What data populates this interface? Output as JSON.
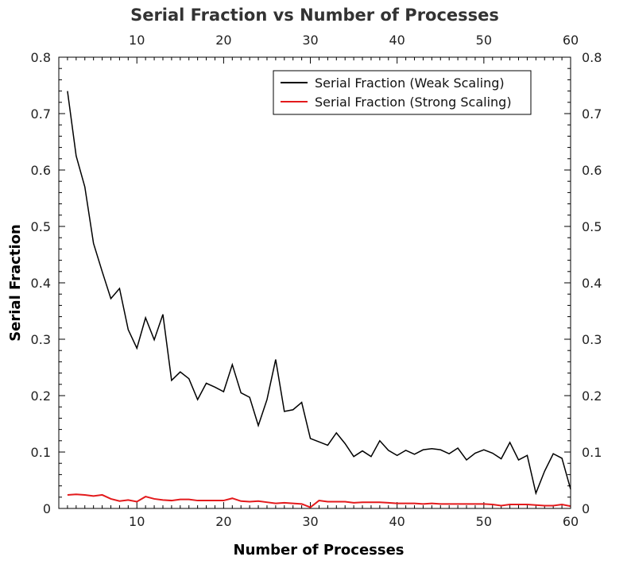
{
  "chart_data": {
    "type": "line",
    "title": "Serial Fraction vs Number of Processes",
    "xlabel": "Number of Processes",
    "ylabel": "Serial Fraction",
    "xlim": [
      1,
      60
    ],
    "ylim": [
      0,
      0.8
    ],
    "x_ticks": [
      10,
      20,
      30,
      40,
      50,
      60
    ],
    "x_tick_labels": [
      "10",
      "20",
      "30",
      "40",
      "50",
      "60"
    ],
    "y_ticks": [
      0,
      0.1,
      0.2,
      0.3,
      0.4,
      0.5,
      0.6,
      0.7,
      0.8
    ],
    "y_tick_labels": [
      "0",
      "0.1",
      "0.2",
      "0.3",
      "0.4",
      "0.5",
      "0.6",
      "0.7",
      "0.8"
    ],
    "grid": false,
    "legend_position": "top-right",
    "x": [
      2,
      3,
      4,
      5,
      6,
      7,
      8,
      9,
      10,
      11,
      12,
      13,
      14,
      15,
      16,
      17,
      18,
      19,
      20,
      21,
      22,
      23,
      24,
      25,
      26,
      27,
      28,
      29,
      30,
      31,
      32,
      33,
      34,
      35,
      36,
      37,
      38,
      39,
      40,
      41,
      42,
      43,
      44,
      45,
      46,
      47,
      48,
      49,
      50,
      51,
      52,
      53,
      54,
      55,
      56,
      57,
      58,
      59,
      60
    ],
    "series": [
      {
        "name": "Serial Fraction (Weak Scaling)",
        "color": "#000000",
        "values": [
          0.74,
          0.625,
          0.57,
          0.47,
          0.42,
          0.372,
          0.39,
          0.317,
          0.284,
          0.338,
          0.299,
          0.344,
          0.227,
          0.242,
          0.23,
          0.193,
          0.222,
          0.215,
          0.207,
          0.255,
          0.205,
          0.197,
          0.147,
          0.193,
          0.264,
          0.172,
          0.175,
          0.188,
          0.124,
          0.118,
          0.112,
          0.134,
          0.115,
          0.092,
          0.102,
          0.092,
          0.12,
          0.103,
          0.094,
          0.103,
          0.096,
          0.104,
          0.106,
          0.104,
          0.097,
          0.107,
          0.086,
          0.098,
          0.104,
          0.098,
          0.088,
          0.117,
          0.086,
          0.094,
          0.027,
          0.066,
          0.097,
          0.089,
          0.034
        ]
      },
      {
        "name": "Serial Fraction (Strong Scaling)",
        "color": "#e31a1c",
        "values": [
          0.024,
          0.025,
          0.024,
          0.022,
          0.024,
          0.017,
          0.013,
          0.015,
          0.012,
          0.021,
          0.017,
          0.015,
          0.014,
          0.016,
          0.016,
          0.014,
          0.014,
          0.014,
          0.014,
          0.018,
          0.013,
          0.012,
          0.013,
          0.011,
          0.009,
          0.01,
          0.009,
          0.008,
          0.002,
          0.014,
          0.012,
          0.012,
          0.012,
          0.01,
          0.011,
          0.011,
          0.011,
          0.01,
          0.009,
          0.009,
          0.009,
          0.008,
          0.009,
          0.008,
          0.008,
          0.008,
          0.008,
          0.008,
          0.008,
          0.007,
          0.005,
          0.007,
          0.007,
          0.007,
          0.006,
          0.005,
          0.005,
          0.007,
          0.004
        ]
      }
    ]
  }
}
